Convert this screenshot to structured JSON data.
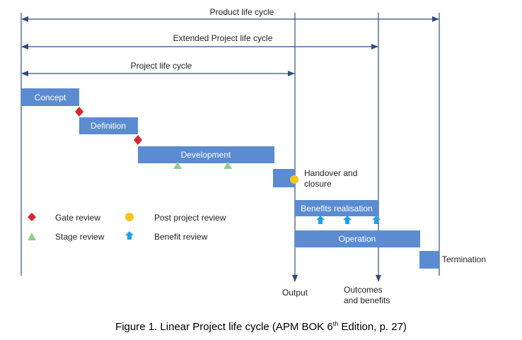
{
  "colors": {
    "bar": "#5b8bd0",
    "line": "#2e4f7e",
    "gate": "#d9262e",
    "stage": "#8fce8f",
    "post": "#f5c518",
    "benefit": "#1fa0e6"
  },
  "spans": {
    "product": "Product life cycle",
    "extended": "Extended Project life cycle",
    "project": "Project life cycle"
  },
  "phases": {
    "concept": "Concept",
    "definition": "Definition",
    "development": "Development",
    "handover_line1": "Handover and",
    "handover_line2": "closure",
    "benefits": "Benefits realisation",
    "operation": "Operation",
    "termination": "Termination"
  },
  "milestones": {
    "output": "Output",
    "outcomes_line1": "Outcomes",
    "outcomes_line2": "and  benefits"
  },
  "legend": {
    "gate_review": "Gate review",
    "stage_review": "Stage review",
    "post_project_review": "Post project review",
    "benefit_review": "Benefit review"
  },
  "caption": {
    "before": "Figure 1. Linear Project life cycle (APM BOK 6",
    "sup": "th",
    "after": " Edition, p. 27)"
  }
}
